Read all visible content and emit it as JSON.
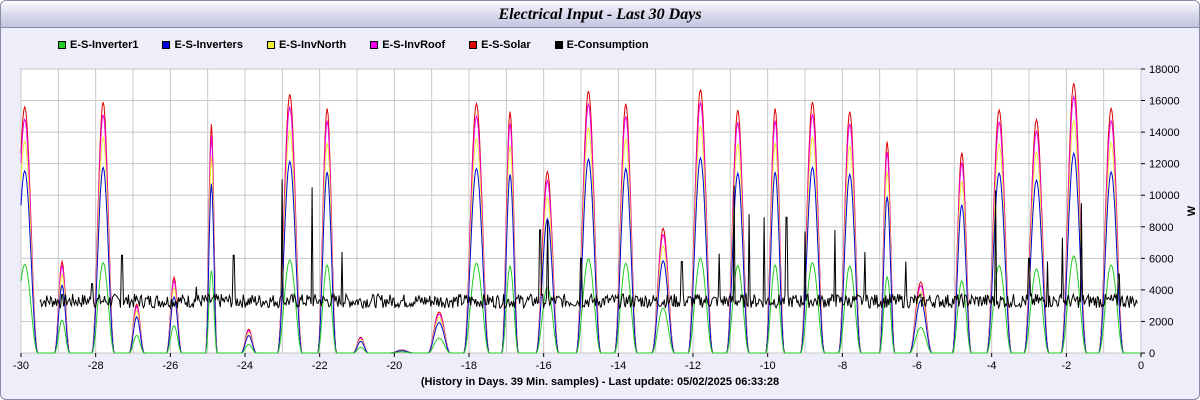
{
  "title": "Electrical Input - Last 30 Days",
  "footer": "(History in Days. 39 Min. samples) - Last update: 05/02/2025 06:33:28",
  "chart_data": {
    "type": "line",
    "xlabel": "",
    "ylabel": "W",
    "xlim": [
      -30,
      0
    ],
    "ylim": [
      0,
      18000
    ],
    "x_ticks": [
      -30,
      -28,
      -26,
      -24,
      -22,
      -20,
      -18,
      -16,
      -14,
      -12,
      -10,
      -8,
      -6,
      -4,
      -2,
      0
    ],
    "y_ticks": [
      0,
      2000,
      4000,
      6000,
      8000,
      10000,
      12000,
      14000,
      16000,
      18000
    ],
    "grid": true,
    "legend_position": "top-left",
    "sample_minutes": 39,
    "days": [
      {
        "day": -29.9,
        "solar": 15600,
        "width": 0.35
      },
      {
        "day": -28.9,
        "solar": 5800,
        "width": 0.2
      },
      {
        "day": -27.8,
        "solar": 15900,
        "width": 0.3
      },
      {
        "day": -26.9,
        "solar": 3100,
        "width": 0.2
      },
      {
        "day": -25.9,
        "solar": 4800,
        "width": 0.2
      },
      {
        "day": -24.9,
        "solar": 14500,
        "width": 0.15
      },
      {
        "day": -23.9,
        "solar": 1500,
        "width": 0.2
      },
      {
        "day": -22.8,
        "solar": 16400,
        "width": 0.33
      },
      {
        "day": -21.8,
        "solar": 15500,
        "width": 0.25
      },
      {
        "day": -20.9,
        "solar": 1000,
        "width": 0.2
      },
      {
        "day": -19.8,
        "solar": 200,
        "width": 0.3
      },
      {
        "day": -18.8,
        "solar": 2600,
        "width": 0.3
      },
      {
        "day": -17.8,
        "solar": 15800,
        "width": 0.34
      },
      {
        "day": -16.9,
        "solar": 15300,
        "width": 0.22
      },
      {
        "day": -15.9,
        "solar": 11500,
        "width": 0.3
      },
      {
        "day": -14.8,
        "solar": 16600,
        "width": 0.33
      },
      {
        "day": -13.8,
        "solar": 15800,
        "width": 0.3
      },
      {
        "day": -12.8,
        "solar": 7900,
        "width": 0.3
      },
      {
        "day": -11.8,
        "solar": 16700,
        "width": 0.33
      },
      {
        "day": -10.8,
        "solar": 15400,
        "width": 0.3
      },
      {
        "day": -9.8,
        "solar": 15500,
        "width": 0.25
      },
      {
        "day": -8.8,
        "solar": 15900,
        "width": 0.32
      },
      {
        "day": -7.8,
        "solar": 15300,
        "width": 0.3
      },
      {
        "day": -6.8,
        "solar": 13400,
        "width": 0.2
      },
      {
        "day": -5.9,
        "solar": 4500,
        "width": 0.3
      },
      {
        "day": -4.8,
        "solar": 12700,
        "width": 0.25
      },
      {
        "day": -3.8,
        "solar": 15400,
        "width": 0.33
      },
      {
        "day": -2.8,
        "solar": 14800,
        "width": 0.33
      },
      {
        "day": -1.8,
        "solar": 17100,
        "width": 0.34
      },
      {
        "day": -0.8,
        "solar": 15500,
        "width": 0.33
      }
    ],
    "consumption_baseline": 3300,
    "consumption_spikes": [
      {
        "day": -28.1,
        "value": 4400
      },
      {
        "day": -27.3,
        "value": 6200
      },
      {
        "day": -25.3,
        "value": 4200
      },
      {
        "day": -24.3,
        "value": 6200
      },
      {
        "day": -23.0,
        "value": 11000
      },
      {
        "day": -22.2,
        "value": 10500
      },
      {
        "day": -21.4,
        "value": 6400
      },
      {
        "day": -16.1,
        "value": 7800
      },
      {
        "day": -15.9,
        "value": 8400
      },
      {
        "day": -15.0,
        "value": 6000
      },
      {
        "day": -12.3,
        "value": 5800
      },
      {
        "day": -11.3,
        "value": 6300
      },
      {
        "day": -10.9,
        "value": 10600
      },
      {
        "day": -10.5,
        "value": 8800
      },
      {
        "day": -10.1,
        "value": 8600
      },
      {
        "day": -9.5,
        "value": 8600
      },
      {
        "day": -9.0,
        "value": 7700
      },
      {
        "day": -8.2,
        "value": 7800
      },
      {
        "day": -7.4,
        "value": 6400
      },
      {
        "day": -6.3,
        "value": 5800
      },
      {
        "day": -3.9,
        "value": 10300
      },
      {
        "day": -3.0,
        "value": 6000
      },
      {
        "day": -2.5,
        "value": 5800
      },
      {
        "day": -2.1,
        "value": 7300
      },
      {
        "day": -1.6,
        "value": 9500
      },
      {
        "day": -0.6,
        "value": 5000
      }
    ],
    "series": [
      {
        "name": "E-S-Inverter1",
        "color": "#22cc22",
        "fraction_of_solar": 0.36
      },
      {
        "name": "E-S-Inverters",
        "color": "#0000dd",
        "fraction_of_solar": 0.74
      },
      {
        "name": "E-S-InvNorth",
        "color": "#eeee33",
        "fraction_of_solar": 0.86
      },
      {
        "name": "E-S-InvRoof",
        "color": "#ee00ee",
        "fraction_of_solar": 0.95
      },
      {
        "name": "E-S-Solar",
        "color": "#dd0000",
        "fraction_of_solar": 1.0
      },
      {
        "name": "E-Consumption",
        "color": "#000000"
      }
    ]
  }
}
